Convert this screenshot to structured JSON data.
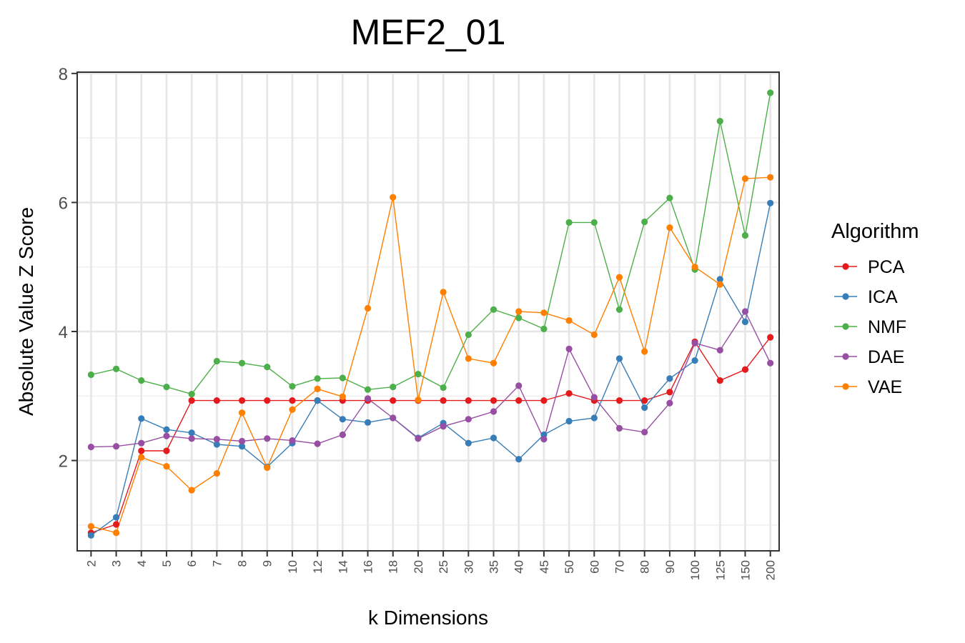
{
  "chart_data": {
    "type": "line",
    "title": "MEF2_01",
    "xlabel": "k Dimensions",
    "ylabel": "Absolute Value Z Score",
    "x": [
      "2",
      "3",
      "4",
      "5",
      "6",
      "7",
      "8",
      "9",
      "10",
      "12",
      "14",
      "16",
      "18",
      "20",
      "25",
      "30",
      "35",
      "40",
      "45",
      "50",
      "60",
      "70",
      "80",
      "90",
      "100",
      "125",
      "150",
      "200"
    ],
    "ylim": [
      0.6,
      8.02
    ],
    "yticks": [
      "2",
      "4",
      "6",
      "8"
    ],
    "grid": true,
    "legend": {
      "title": "Algorithm",
      "position": "right"
    },
    "series": [
      {
        "name": "PCA",
        "color": "#E41A1C",
        "values": [
          0.88,
          1.01,
          2.15,
          2.15,
          2.93,
          2.93,
          2.93,
          2.93,
          2.93,
          2.93,
          2.93,
          2.93,
          2.93,
          2.93,
          2.93,
          2.93,
          2.93,
          2.93,
          2.93,
          3.04,
          2.93,
          2.93,
          2.93,
          3.06,
          3.84,
          3.24,
          3.41,
          3.91
        ]
      },
      {
        "name": "ICA",
        "color": "#377EB8",
        "values": [
          0.84,
          1.12,
          2.65,
          2.48,
          2.43,
          2.25,
          2.22,
          1.9,
          2.27,
          2.93,
          2.64,
          2.59,
          2.66,
          2.35,
          2.58,
          2.27,
          2.35,
          2.02,
          2.4,
          2.61,
          2.66,
          3.58,
          2.82,
          3.27,
          3.55,
          4.81,
          4.15,
          5.99
        ]
      },
      {
        "name": "NMF",
        "color": "#4DAF4A",
        "values": [
          3.33,
          3.42,
          3.24,
          3.14,
          3.03,
          3.54,
          3.51,
          3.45,
          3.15,
          3.27,
          3.28,
          3.1,
          3.14,
          3.34,
          3.13,
          3.95,
          4.34,
          4.21,
          4.04,
          5.69,
          5.69,
          4.34,
          5.7,
          6.07,
          4.96,
          7.26,
          5.49,
          7.7
        ]
      },
      {
        "name": "DAE",
        "color": "#984EA3",
        "values": [
          2.21,
          2.22,
          2.27,
          2.38,
          2.34,
          2.33,
          2.3,
          2.34,
          2.31,
          2.26,
          2.4,
          2.96,
          2.66,
          2.34,
          2.53,
          2.64,
          2.76,
          3.16,
          2.33,
          3.73,
          2.98,
          2.5,
          2.44,
          2.89,
          3.82,
          3.71,
          4.31,
          3.51
        ]
      },
      {
        "name": "VAE",
        "color": "#FF7F00",
        "values": [
          0.98,
          0.88,
          2.05,
          1.91,
          1.54,
          1.8,
          2.74,
          1.89,
          2.79,
          3.11,
          2.99,
          4.36,
          6.08,
          2.94,
          4.61,
          3.58,
          3.51,
          4.31,
          4.29,
          4.17,
          3.95,
          4.84,
          3.69,
          5.61,
          5.0,
          4.73,
          6.37,
          6.39
        ]
      }
    ]
  }
}
